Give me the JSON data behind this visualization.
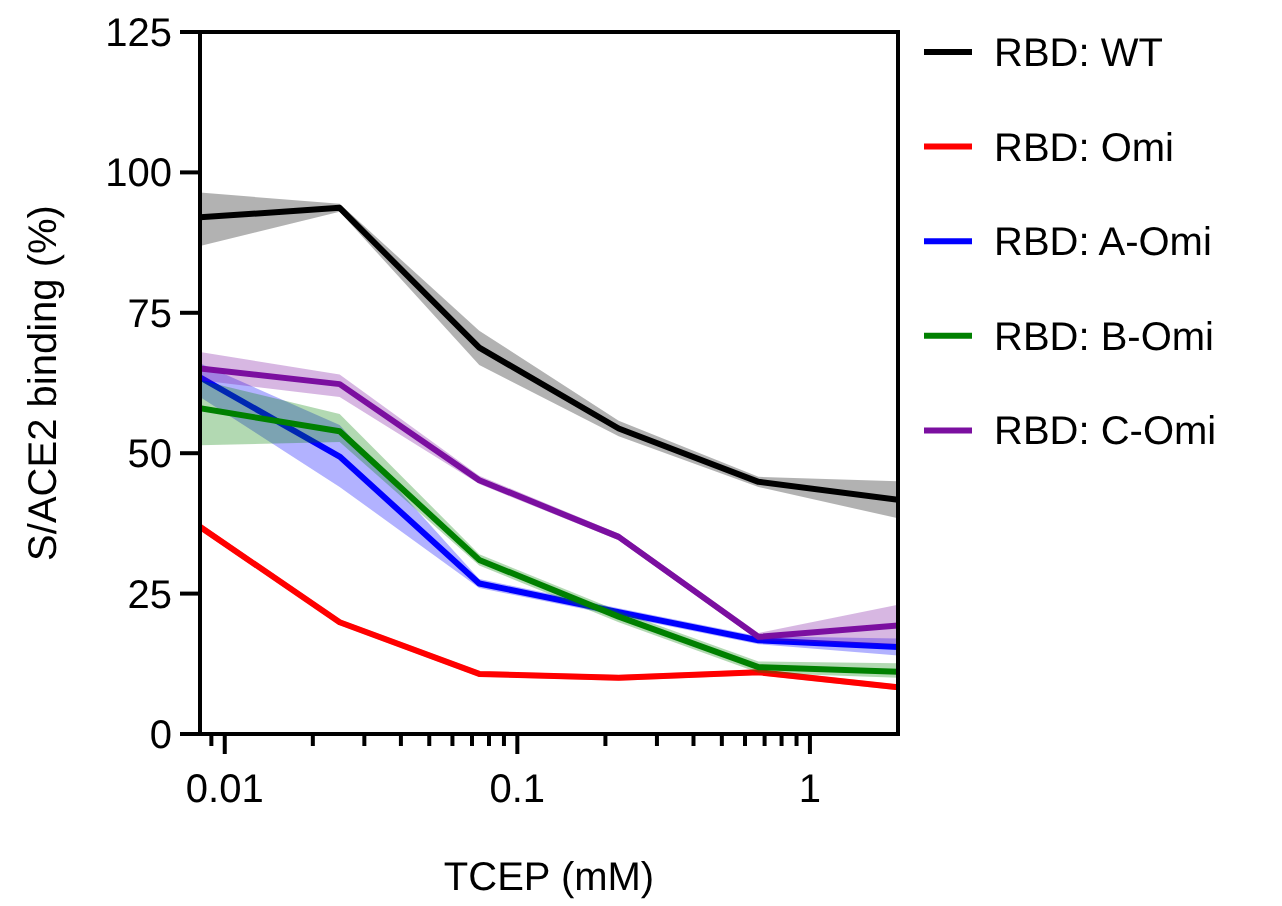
{
  "chart_data": {
    "type": "line",
    "xlabel": "TCEP (mM)",
    "ylabel": "S/ACE2 binding (%)",
    "log": "x",
    "xlim": [
      0.00823,
      2
    ],
    "ylim": [
      0,
      125
    ],
    "xticks": [
      {
        "value": 0.009,
        "label": null
      },
      0.01,
      {
        "value": 0.02,
        "label": null
      },
      {
        "value": 0.03,
        "label": null
      },
      {
        "value": 0.04,
        "label": null
      },
      {
        "value": 0.05,
        "label": null
      },
      {
        "value": 0.06,
        "label": null
      },
      {
        "value": 0.07,
        "label": null
      },
      {
        "value": 0.08,
        "label": null
      },
      {
        "value": 0.09,
        "label": null
      },
      0.1,
      {
        "value": 0.2,
        "label": null
      },
      {
        "value": 0.3,
        "label": null
      },
      {
        "value": 0.4,
        "label": null
      },
      {
        "value": 0.5,
        "label": null
      },
      {
        "value": 0.6,
        "label": null
      },
      {
        "value": 0.7,
        "label": null
      },
      {
        "value": 0.8,
        "label": null
      },
      {
        "value": 0.9,
        "label": null
      },
      1
    ],
    "yticks": [
      0,
      25,
      50,
      75,
      100,
      125
    ],
    "grid": false,
    "legend": "right",
    "marker": "none",
    "line_style": "solid",
    "x": [
      0.00823,
      0.0247,
      0.0741,
      0.222,
      0.667,
      2
    ],
    "series": [
      {
        "name": "RBD: WT",
        "color": "#000000",
        "values": [
          92,
          93.7,
          68.8,
          54.4,
          44.9,
          41.7
        ],
        "lower": [
          86.9,
          93,
          65.7,
          53,
          44,
          38.4
        ],
        "upper": [
          96.4,
          94.4,
          71.8,
          55.8,
          45.8,
          45
        ]
      },
      {
        "name": "RBD: Omi",
        "color": "#ff0000",
        "values": [
          36.9,
          19.9,
          10.7,
          10,
          11,
          8.3
        ],
        "lower": [
          36.3,
          19.4,
          10.2,
          9.5,
          10.5,
          7.8
        ],
        "upper": [
          37.5,
          20.4,
          11.2,
          10.5,
          11.5,
          8.8
        ]
      },
      {
        "name": "RBD: A-Omi",
        "color": "#0000ff",
        "values": [
          63.5,
          49.4,
          26.8,
          21.7,
          16.7,
          15.5
        ],
        "lower": [
          60,
          44,
          26,
          21,
          16,
          14
        ],
        "upper": [
          66,
          55,
          27.6,
          22.4,
          17.4,
          17
        ]
      },
      {
        "name": "RBD: B-Omi",
        "color": "#008000",
        "values": [
          58,
          53.9,
          31,
          20.9,
          11.9,
          11.1
        ],
        "lower": [
          51.4,
          52,
          30,
          19.9,
          10.9,
          10
        ],
        "upper": [
          63,
          57,
          32,
          21.9,
          12.9,
          12.6
        ]
      },
      {
        "name": "RBD: C-Omi",
        "color": "#7b0fa0",
        "values": [
          65.1,
          62.3,
          45.2,
          35.1,
          17.3,
          19.3
        ],
        "lower": [
          63,
          60,
          44.5,
          34.5,
          16.7,
          16
        ],
        "upper": [
          68,
          64,
          46,
          35.7,
          18,
          23
        ]
      }
    ]
  }
}
